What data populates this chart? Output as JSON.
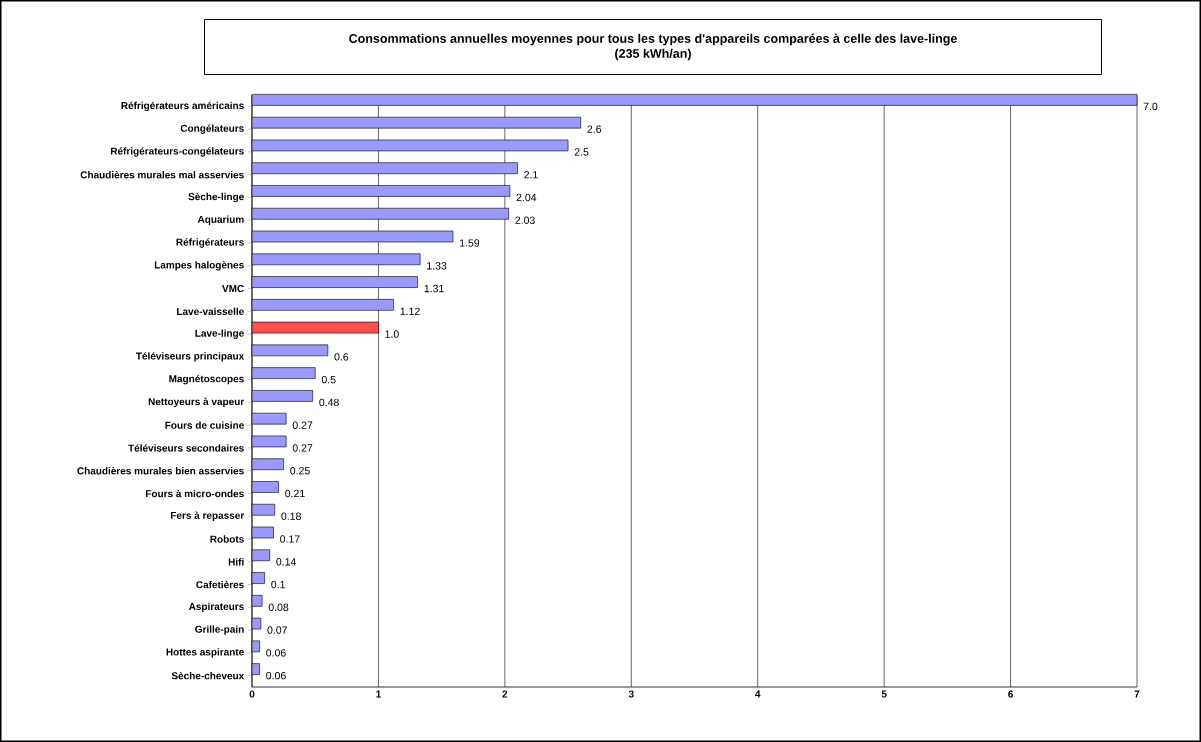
{
  "chart_data": {
    "type": "bar",
    "orientation": "horizontal",
    "title": "Consommations annuelles moyennes pour tous les types d'appareils comparées à celle des lave-linge",
    "subtitle": "(235 kWh/an)",
    "categories": [
      "Réfrigérateurs américains",
      "Congélateurs",
      "Réfrigérateurs-congélateurs",
      "Chaudières murales mal asservies",
      "Sèche-linge",
      "Aquarium",
      "Réfrigérateurs",
      "Lampes halogènes",
      "VMC",
      "Lave-vaisselle",
      "Lave-linge",
      "Téléviseurs principaux",
      "Magnétoscopes",
      "Nettoyeurs à vapeur",
      "Fours de cuisine",
      "Téléviseurs secondaires",
      "Chaudières murales bien asservies",
      "Fours à micro-ondes",
      "Fers à repasser",
      "Robots",
      "Hifi",
      "Cafetières",
      "Aspirateurs",
      "Grille-pain",
      "Hottes aspirante",
      "Sèche-cheveux"
    ],
    "values": [
      7.0,
      2.6,
      2.5,
      2.1,
      2.04,
      2.03,
      1.59,
      1.33,
      1.31,
      1.12,
      1.0,
      0.6,
      0.5,
      0.48,
      0.27,
      0.27,
      0.25,
      0.21,
      0.18,
      0.17,
      0.14,
      0.1,
      0.08,
      0.07,
      0.06,
      0.06
    ],
    "value_labels": [
      "7.0",
      "2.6",
      "2.5",
      "2.1",
      "2.04",
      "2.03",
      "1.59",
      "1.33",
      "1.31",
      "1.12",
      "1.0",
      "0.6",
      "0.5",
      "0.48",
      "0.27",
      "0.27",
      "0.25",
      "0.21",
      "0.18",
      "0.17",
      "0.14",
      "0.1",
      "0.08",
      "0.07",
      "0.06",
      "0.06"
    ],
    "colors": [
      "#9999ff",
      "#9999ff",
      "#9999ff",
      "#9999ff",
      "#9999ff",
      "#9999ff",
      "#9999ff",
      "#9999ff",
      "#9999ff",
      "#9999ff",
      "#ff5050",
      "#9999ff",
      "#9999ff",
      "#9999ff",
      "#9999ff",
      "#9999ff",
      "#9999ff",
      "#9999ff",
      "#9999ff",
      "#9999ff",
      "#9999ff",
      "#9999ff",
      "#9999ff",
      "#9999ff",
      "#9999ff",
      "#9999ff"
    ],
    "xlim": [
      0,
      7
    ],
    "xticks": [
      0,
      1,
      2,
      3,
      4,
      5,
      6,
      7
    ],
    "grid": "x"
  }
}
